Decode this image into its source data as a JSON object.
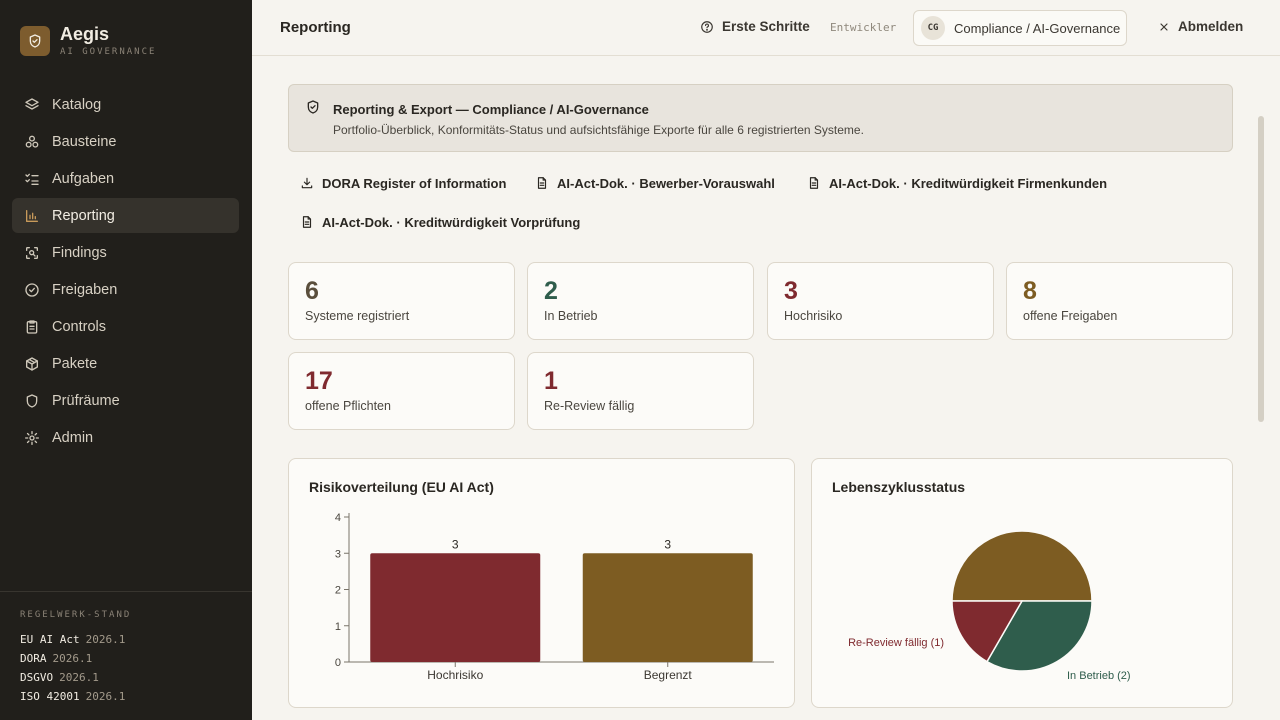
{
  "brand": {
    "name": "Aegis",
    "subtitle": "AI GOVERNANCE"
  },
  "sidebar": {
    "items": [
      {
        "label": "Katalog",
        "icon": "layers-icon",
        "active": false
      },
      {
        "label": "Bausteine",
        "icon": "blocks-icon",
        "active": false
      },
      {
        "label": "Aufgaben",
        "icon": "checklist-icon",
        "active": false
      },
      {
        "label": "Reporting",
        "icon": "bar-chart-icon",
        "active": true
      },
      {
        "label": "Findings",
        "icon": "scan-search-icon",
        "active": false
      },
      {
        "label": "Freigaben",
        "icon": "check-circle-icon",
        "active": false
      },
      {
        "label": "Controls",
        "icon": "clipboard-icon",
        "active": false
      },
      {
        "label": "Pakete",
        "icon": "package-icon",
        "active": false
      },
      {
        "label": "Prüfräume",
        "icon": "shield-icon",
        "active": false
      },
      {
        "label": "Admin",
        "icon": "gear-icon",
        "active": false
      }
    ],
    "footer": {
      "heading": "REGELWERK-STAND",
      "regulations": [
        {
          "name": "EU AI Act",
          "version": "2026.1"
        },
        {
          "name": "DORA",
          "version": "2026.1"
        },
        {
          "name": "DSGVO",
          "version": "2026.1"
        },
        {
          "name": "ISO 42001",
          "version": "2026.1"
        }
      ]
    }
  },
  "topbar": {
    "title": "Reporting",
    "help_label": "Erste Schritte",
    "dev_label": "Entwickler",
    "tenant_initials": "CG",
    "tenant_name": "Compliance / AI-Governance",
    "logout_label": "Abmelden"
  },
  "banner": {
    "title": "Reporting & Export — Compliance / AI-Governance",
    "description": "Portfolio-Überblick, Konformitäts-Status und aufsichtsfähige Exporte für alle 6 registrierten Systeme."
  },
  "exports": [
    {
      "label": "DORA Register of Information",
      "icon": "download-icon"
    },
    {
      "label": "AI-Act-Dok. · Bewerber-Vorauswahl",
      "icon": "document-icon"
    },
    {
      "label": "AI-Act-Dok. · Kreditwürdigkeit Firmenkunden",
      "icon": "document-icon"
    },
    {
      "label": "AI-Act-Dok. · Kreditwürdigkeit Vorprüfung",
      "icon": "document-icon"
    }
  ],
  "kpis": [
    {
      "value": "6",
      "label": "Systeme registriert",
      "color": "#5a4e3c"
    },
    {
      "value": "2",
      "label": "In Betrieb",
      "color": "#2f5d4c"
    },
    {
      "value": "3",
      "label": "Hochrisiko",
      "color": "#7f2a2f"
    },
    {
      "value": "8",
      "label": "offene Freigaben",
      "color": "#7d5c22"
    },
    {
      "value": "17",
      "label": "offene Pflichten",
      "color": "#7f2a2f"
    },
    {
      "value": "1",
      "label": "Re-Review fällig",
      "color": "#7f2a2f"
    }
  ],
  "chart_data": [
    {
      "type": "bar",
      "title": "Risikoverteilung (EU AI Act)",
      "categories": [
        "Hochrisiko",
        "Begrenzt"
      ],
      "values": [
        3,
        3
      ],
      "colors": [
        "#7f2a2f",
        "#7d5c22"
      ],
      "ylim": [
        0,
        4
      ],
      "yticks": [
        0,
        1,
        2,
        3,
        4
      ],
      "data_labels": [
        "3",
        "3"
      ],
      "grid": false
    },
    {
      "type": "pie",
      "title": "Lebenszyklusstatus",
      "slices": [
        {
          "label": "",
          "value": 3,
          "color": "#7d5c22"
        },
        {
          "label": "In Betrieb (2)",
          "value": 2,
          "color": "#2f5d4c"
        },
        {
          "label": "Re-Review fällig (1)",
          "value": 1,
          "color": "#7f2a2f"
        }
      ]
    }
  ]
}
